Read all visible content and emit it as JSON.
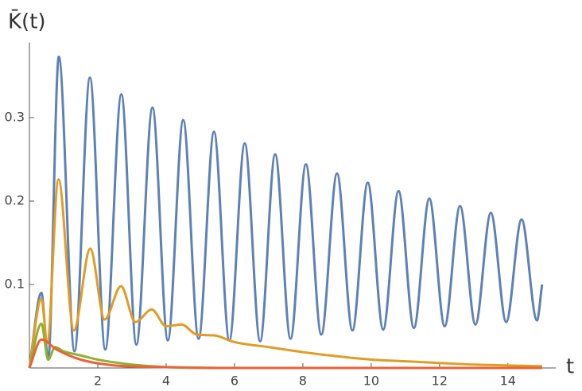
{
  "chart_data": {
    "type": "line",
    "ylabel": "K̄(t)",
    "xlabel": "t",
    "xlim": [
      0,
      15.4
    ],
    "ylim": [
      0,
      0.39
    ],
    "xticks": [
      2,
      4,
      6,
      8,
      10,
      12,
      14
    ],
    "yticks": [
      0.1,
      0.2,
      0.3
    ],
    "series": [
      {
        "color": "#5e81b5",
        "x": [
          0,
          0.35,
          0.55,
          0.86,
          1.32,
          1.77,
          2.22,
          2.69,
          3.13,
          3.6,
          4.05,
          4.5,
          4.95,
          5.4,
          5.85,
          6.3,
          6.75,
          7.19,
          7.64,
          8.09,
          8.54,
          9.0,
          9.45,
          9.9,
          10.35,
          10.8,
          11.25,
          11.7,
          12.15,
          12.6,
          13.05,
          13.5,
          13.95,
          14.4,
          14.85,
          15.0
        ],
        "values": [
          0,
          0.09,
          0.01,
          0.373,
          0.02,
          0.348,
          0.022,
          0.328,
          0.028,
          0.312,
          0.033,
          0.297,
          0.035,
          0.283,
          0.033,
          0.269,
          0.032,
          0.256,
          0.035,
          0.244,
          0.04,
          0.233,
          0.045,
          0.222,
          0.046,
          0.212,
          0.048,
          0.203,
          0.05,
          0.194,
          0.052,
          0.186,
          0.055,
          0.178,
          0.057,
          0.1
        ]
      },
      {
        "color": "#e19c24",
        "x": [
          0,
          0.35,
          0.52,
          0.85,
          1.3,
          1.78,
          2.2,
          2.68,
          3.1,
          3.58,
          4.0,
          4.45,
          4.9,
          5.4,
          6,
          7,
          8,
          9,
          10,
          11,
          12,
          13,
          14,
          15
        ],
        "values": [
          0,
          0.083,
          0.03,
          0.226,
          0.045,
          0.143,
          0.058,
          0.098,
          0.055,
          0.07,
          0.05,
          0.052,
          0.04,
          0.039,
          0.031,
          0.025,
          0.019,
          0.014,
          0.01,
          0.008,
          0.006,
          0.004,
          0.003,
          0.002
        ]
      },
      {
        "color": "#8fb032",
        "x": [
          0,
          0.35,
          0.55,
          0.75,
          1,
          1.5,
          2,
          3,
          4,
          6,
          15
        ],
        "values": [
          0,
          0.053,
          0.01,
          0.025,
          0.02,
          0.015,
          0.01,
          0.004,
          0.001,
          0,
          0
        ]
      },
      {
        "color": "#eb6235",
        "x": [
          0,
          0.35,
          0.8,
          1.5,
          2.5,
          4,
          6,
          15
        ],
        "values": [
          0,
          0.034,
          0.022,
          0.01,
          0.003,
          0.001,
          0,
          0
        ]
      }
    ]
  }
}
